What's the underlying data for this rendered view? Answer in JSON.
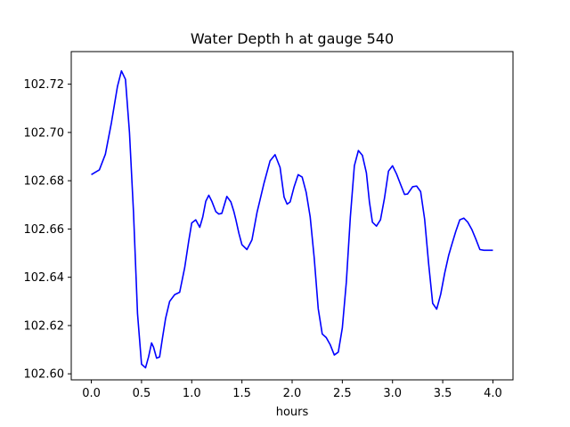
{
  "chart_data": {
    "type": "line",
    "title": "Water Depth h at gauge 540",
    "xlabel": "hours",
    "ylabel": "",
    "xlim": [
      -0.2,
      4.2
    ],
    "ylim": [
      102.5975,
      102.7335
    ],
    "xticks": [
      0.0,
      0.5,
      1.0,
      1.5,
      2.0,
      2.5,
      3.0,
      3.5,
      4.0
    ],
    "xtick_labels": [
      "0.0",
      "0.5",
      "1.0",
      "1.5",
      "2.0",
      "2.5",
      "3.0",
      "3.5",
      "4.0"
    ],
    "yticks": [
      102.6,
      102.62,
      102.64,
      102.66,
      102.68,
      102.7,
      102.72
    ],
    "ytick_labels": [
      "102.60",
      "102.62",
      "102.64",
      "102.66",
      "102.68",
      "102.70",
      "102.72"
    ],
    "grid": false,
    "series": [
      {
        "color": "#0000ff",
        "x": [
          0.0,
          0.08,
          0.14,
          0.2,
          0.26,
          0.3,
          0.34,
          0.38,
          0.42,
          0.46,
          0.5,
          0.54,
          0.57,
          0.6,
          0.62,
          0.65,
          0.68,
          0.71,
          0.74,
          0.78,
          0.83,
          0.88,
          0.93,
          0.97,
          1.0,
          1.04,
          1.08,
          1.11,
          1.14,
          1.17,
          1.2,
          1.24,
          1.27,
          1.3,
          1.35,
          1.39,
          1.42,
          1.44,
          1.47,
          1.5,
          1.55,
          1.6,
          1.65,
          1.68,
          1.72,
          1.78,
          1.83,
          1.88,
          1.92,
          1.95,
          1.98,
          2.02,
          2.06,
          2.1,
          2.14,
          2.18,
          2.22,
          2.26,
          2.3,
          2.34,
          2.38,
          2.42,
          2.46,
          2.5,
          2.54,
          2.58,
          2.62,
          2.66,
          2.7,
          2.74,
          2.77,
          2.8,
          2.84,
          2.88,
          2.92,
          2.96,
          3.0,
          3.04,
          3.08,
          3.12,
          3.15,
          3.2,
          3.24,
          3.28,
          3.32,
          3.36,
          3.4,
          3.44,
          3.48,
          3.52,
          3.56,
          3.59,
          3.63,
          3.67,
          3.71,
          3.75,
          3.79,
          3.83,
          3.87,
          3.91,
          3.95,
          4.0
        ],
        "y": [
          102.6825,
          102.6845,
          102.691,
          102.704,
          102.719,
          102.7255,
          102.722,
          102.7,
          102.667,
          102.625,
          102.604,
          102.6025,
          102.607,
          102.6128,
          102.611,
          102.6065,
          102.607,
          102.6152,
          102.623,
          102.63,
          102.6328,
          102.6338,
          102.644,
          102.655,
          102.6625,
          102.6638,
          102.6607,
          102.665,
          102.6715,
          102.674,
          102.6715,
          102.6672,
          102.6662,
          102.6665,
          102.6735,
          102.6712,
          102.6672,
          102.6638,
          102.6582,
          102.6535,
          102.6515,
          102.6555,
          102.6668,
          102.672,
          102.679,
          102.6882,
          102.6908,
          102.6855,
          102.6732,
          102.6703,
          102.6712,
          102.6775,
          102.6825,
          102.6815,
          102.6752,
          102.665,
          102.648,
          102.627,
          102.6165,
          102.615,
          102.612,
          102.6078,
          102.609,
          102.619,
          102.638,
          102.665,
          102.6862,
          102.6925,
          102.6905,
          102.6832,
          102.6712,
          102.6628,
          102.6612,
          102.6638,
          102.6728,
          102.684,
          102.6862,
          102.6828,
          102.6785,
          102.6743,
          102.6745,
          102.6775,
          102.6778,
          102.6755,
          102.664,
          102.6455,
          102.6292,
          102.6268,
          102.633,
          102.6418,
          102.6492,
          102.6535,
          102.659,
          102.6638,
          102.6645,
          102.6628,
          102.6598,
          102.6558,
          102.6515,
          102.6512,
          102.6512,
          102.6512
        ]
      }
    ]
  }
}
